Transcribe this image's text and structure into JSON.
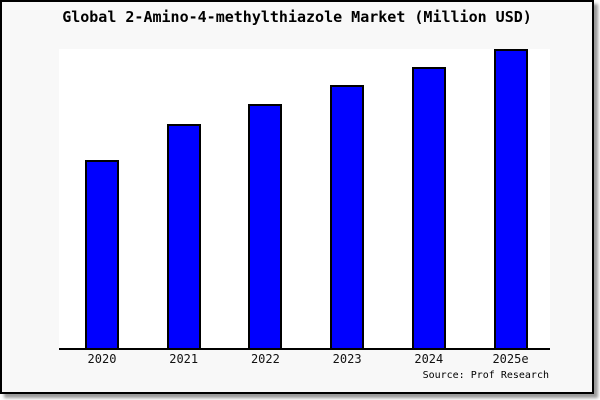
{
  "chart_data": {
    "type": "bar",
    "title": "Global 2-Amino-4-methylthiazole Market (Million USD)",
    "categories": [
      "2020",
      "2021",
      "2022",
      "2023",
      "2024",
      "2025e"
    ],
    "values": [
      63,
      75,
      81.5,
      88,
      94,
      100
    ],
    "unit": "relative index (no y-axis tick labels shown; 2025e bar = 100)",
    "xlabel": "",
    "ylabel": "",
    "ylim": [
      0,
      100
    ],
    "grid": false,
    "legend": false,
    "bar_color": "#0000ff",
    "bar_border_color": "#000000",
    "plot_background": "#ffffff",
    "panel_background": "#f8f8f8",
    "axis_color": "#000000"
  },
  "footer": {
    "source_label": "Source: Prof Research"
  }
}
